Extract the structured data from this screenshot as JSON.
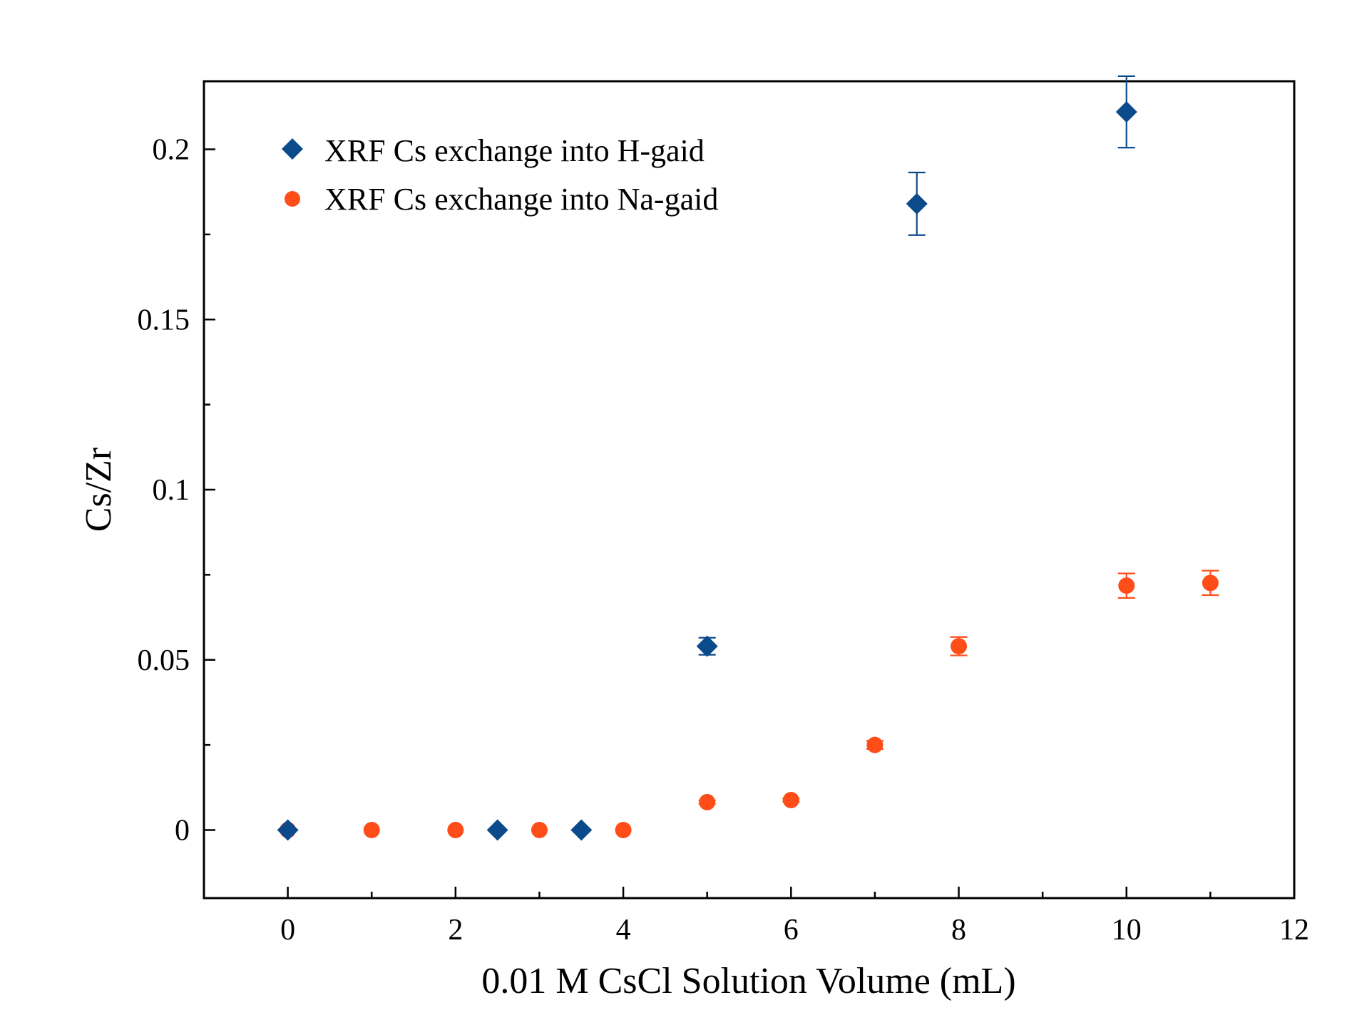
{
  "chart_data": {
    "type": "scatter",
    "xlabel": "0.01 M CsCl Solution Volume (mL)",
    "ylabel": "Cs/Zr",
    "xlim": [
      -1,
      12
    ],
    "ylim": [
      -0.02,
      0.22
    ],
    "x_ticks": [
      0,
      2,
      4,
      6,
      8,
      10,
      12
    ],
    "x_tick_labels": [
      "0",
      "2",
      "4",
      "6",
      "8",
      "10",
      "12"
    ],
    "x_minor_ticks": [
      1,
      3,
      5,
      7,
      9,
      11
    ],
    "y_ticks": [
      0,
      0.05,
      0.1,
      0.15,
      0.2
    ],
    "y_tick_labels": [
      "0",
      "0.05",
      "0.1",
      "0.15",
      "0.2"
    ],
    "y_minor_ticks": [
      0.025,
      0.075,
      0.125,
      0.175
    ],
    "grid": false,
    "legend_position": "top-left",
    "series": [
      {
        "name": "XRF Cs exchange into H-gaid",
        "marker": "diamond",
        "color": "#0b4a8b",
        "points": [
          {
            "x": 0,
            "y": 0,
            "err": 0
          },
          {
            "x": 2.5,
            "y": 0,
            "err": 0
          },
          {
            "x": 3.5,
            "y": 0,
            "err": 0
          },
          {
            "x": 5,
            "y": 0.054,
            "err": 0.0025
          },
          {
            "x": 7.5,
            "y": 0.184,
            "err": 0.0092
          },
          {
            "x": 10,
            "y": 0.211,
            "err": 0.0105
          }
        ]
      },
      {
        "name": "XRF Cs exchange into Na-gaid",
        "marker": "circle",
        "color": "#ff4d1a",
        "points": [
          {
            "x": 0,
            "y": 0,
            "err": 0
          },
          {
            "x": 1,
            "y": 0,
            "err": 0
          },
          {
            "x": 2,
            "y": 0,
            "err": 0
          },
          {
            "x": 3,
            "y": 0,
            "err": 0
          },
          {
            "x": 4,
            "y": 0,
            "err": 0
          },
          {
            "x": 5,
            "y": 0.0082,
            "err": 0.0005
          },
          {
            "x": 6,
            "y": 0.0088,
            "err": 0.0005
          },
          {
            "x": 7,
            "y": 0.025,
            "err": 0.0012
          },
          {
            "x": 8,
            "y": 0.054,
            "err": 0.0027
          },
          {
            "x": 10,
            "y": 0.0718,
            "err": 0.0036
          },
          {
            "x": 11,
            "y": 0.0726,
            "err": 0.0036
          }
        ]
      }
    ]
  }
}
